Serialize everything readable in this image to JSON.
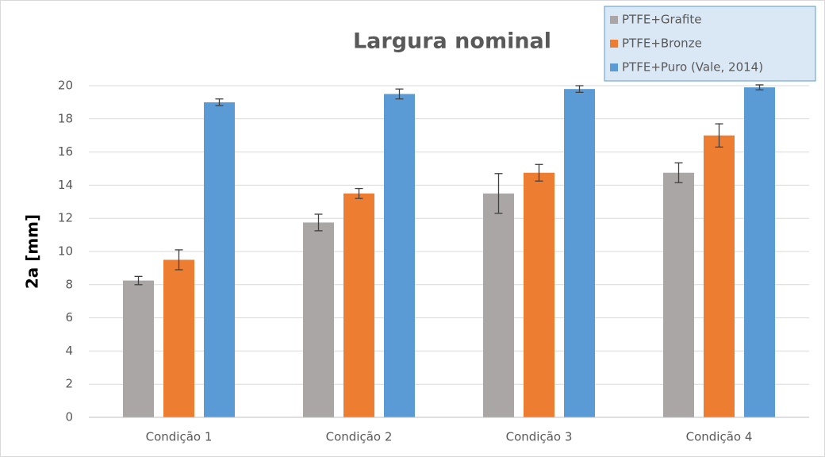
{
  "chart_data": {
    "type": "bar",
    "title": "Largura nominal",
    "y_label": "2a [mm]",
    "categories": [
      "Condição 1",
      "Condição 2",
      "Condição 3",
      "Condição 4"
    ],
    "series": [
      {
        "name": "PTFE+Grafite",
        "color": "#aaa6a5",
        "values": [
          8.25,
          11.75,
          13.5,
          14.75
        ],
        "errors": [
          0.25,
          0.5,
          1.2,
          0.6
        ]
      },
      {
        "name": "PTFE+Bronze",
        "color": "#ed7d31",
        "values": [
          9.5,
          13.5,
          14.75,
          17
        ],
        "errors": [
          0.6,
          0.3,
          0.5,
          0.7
        ]
      },
      {
        "name": "PTFE+Puro (Vale, 2014)",
        "color": "#5b9bd5",
        "values": [
          19,
          19.5,
          19.8,
          19.9
        ],
        "errors": [
          0.2,
          0.3,
          0.2,
          0.15
        ]
      }
    ],
    "ylim": [
      0,
      20
    ],
    "yticks": [
      0,
      2,
      4,
      6,
      8,
      10,
      12,
      14,
      16,
      18,
      20
    ],
    "grid": true,
    "legend": "top-right"
  }
}
